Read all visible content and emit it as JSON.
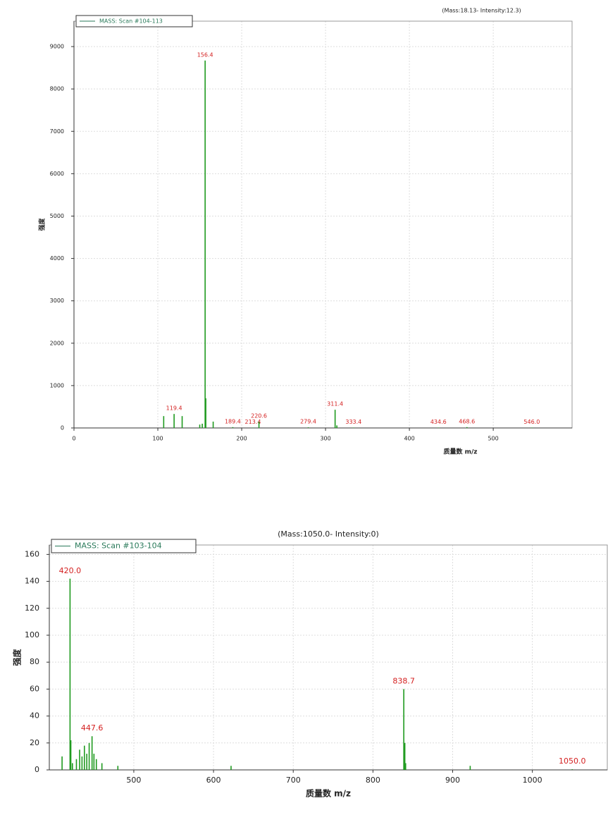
{
  "chart_data": [
    {
      "type": "stem",
      "subtitle": "(Mass:18.13- Intensity:12.3)",
      "legend": "MASS: Scan #104-113",
      "y_label": "强度",
      "x_label": "质量数 m/z",
      "color": "#1f9a1f",
      "label_color": "#d42020",
      "grid": true,
      "xlim": [
        0,
        594
      ],
      "xticks": [
        0,
        100,
        200,
        300,
        400,
        500
      ],
      "ylim": [
        0,
        9600
      ],
      "yticks": [
        0,
        1000,
        2000,
        3000,
        4000,
        5000,
        6000,
        7000,
        8000,
        9000
      ],
      "x": [
        107,
        119.4,
        129,
        150,
        153,
        156.4,
        157.2,
        166,
        189.4,
        213.4,
        220.6,
        279.4,
        311.4,
        313.5,
        333.4,
        434.6,
        468.6,
        546.0
      ],
      "values": [
        280,
        330,
        280,
        80,
        100,
        8670,
        700,
        150,
        20,
        10,
        150,
        15,
        430,
        60,
        10,
        10,
        20,
        10
      ],
      "labels": [
        null,
        "119.4",
        null,
        null,
        null,
        "156.4",
        null,
        null,
        "189.4",
        "213.4",
        "220.6",
        "279.4",
        "311.4",
        null,
        "333.4",
        "434.6",
        "468.6",
        "546.0"
      ]
    },
    {
      "type": "stem",
      "subtitle": "(Mass:1050.0- Intensity:0)",
      "legend": "MASS: Scan #103-104",
      "y_label": "强度",
      "x_label": "质量数 m/z",
      "color": "#1f9a1f",
      "label_color": "#d42020",
      "grid": true,
      "xlim": [
        394,
        1094
      ],
      "xticks": [
        500,
        600,
        700,
        800,
        900,
        1000
      ],
      "ylim": [
        0,
        167
      ],
      "yticks": [
        0,
        20,
        40,
        60,
        80,
        100,
        120,
        140,
        160
      ],
      "x": [
        410,
        420.0,
        421,
        423,
        428,
        432,
        435,
        438,
        441,
        444,
        447.6,
        450,
        453,
        460,
        480,
        622,
        838.7,
        840,
        841,
        922,
        1050.0
      ],
      "values": [
        10,
        142,
        22,
        5,
        8,
        15,
        10,
        18,
        12,
        20,
        25,
        12,
        8,
        5,
        3,
        3,
        60,
        20,
        5,
        3,
        0.5
      ],
      "labels": [
        null,
        "420.0",
        null,
        null,
        null,
        null,
        null,
        null,
        null,
        null,
        "447.6",
        null,
        null,
        null,
        null,
        null,
        "838.7",
        null,
        null,
        null,
        "1050.0"
      ]
    }
  ]
}
